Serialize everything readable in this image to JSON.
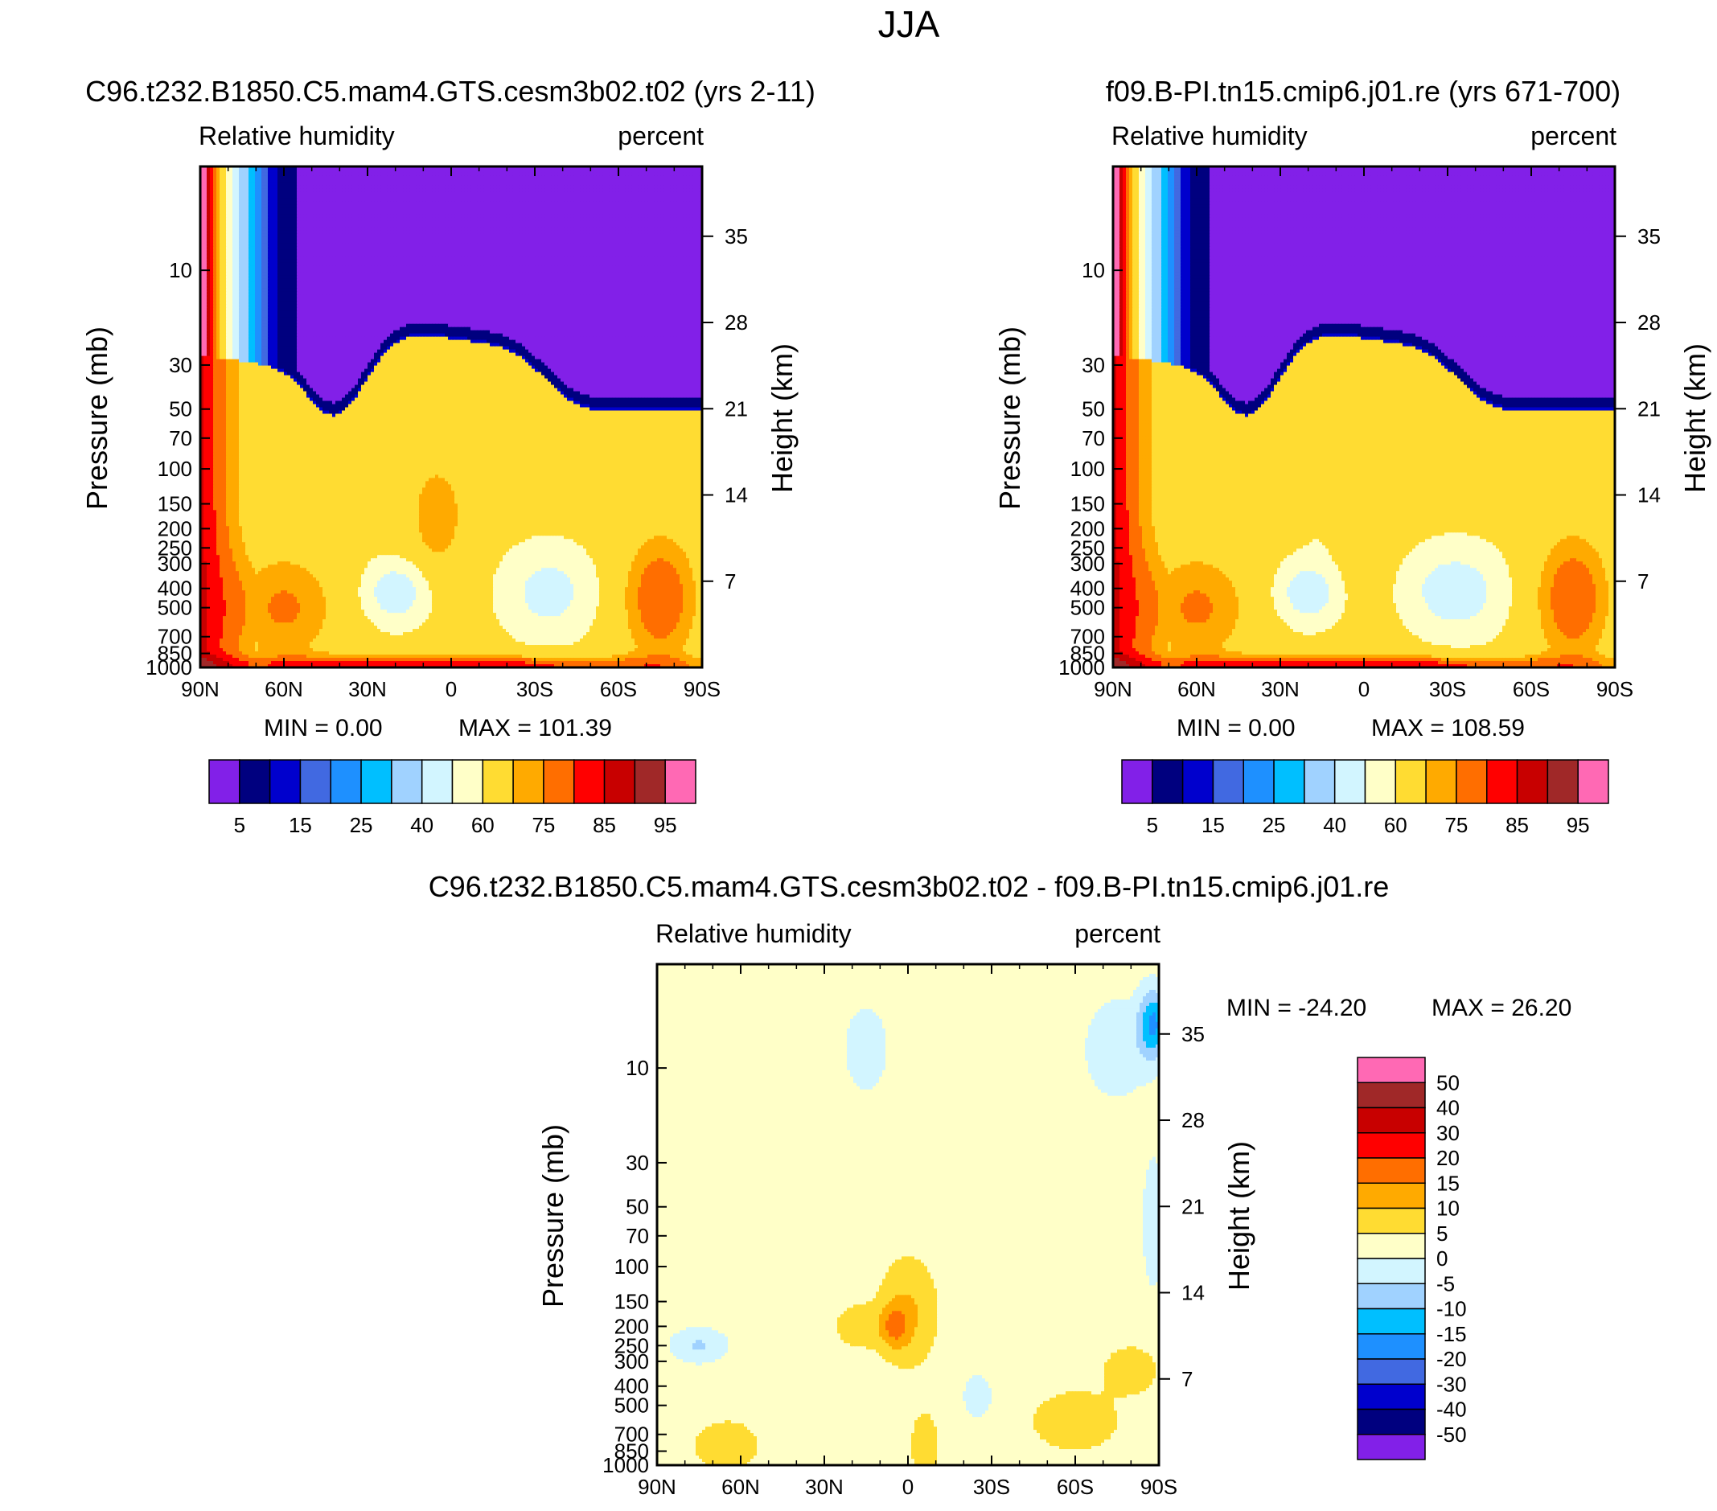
{
  "figure": {
    "title": "JJA"
  },
  "colors": {
    "rh_levels": [
      "#8220e8",
      "#00007f",
      "#0000cd",
      "#4169e1",
      "#1e90ff",
      "#00bfff",
      "#a0d2ff",
      "#d2f5ff",
      "#ffffc8",
      "#ffdc32",
      "#ffaa00",
      "#ff6e00",
      "#ff0000",
      "#c80000",
      "#a02828",
      "#ff69b4"
    ],
    "diff_levels": [
      "#8220e8",
      "#00007f",
      "#0000cd",
      "#4169e1",
      "#1e90ff",
      "#00bfff",
      "#a0d2ff",
      "#d2f5ff",
      "#ffffc8",
      "#ffdc32",
      "#ffaa00",
      "#ff6e00",
      "#ff0000",
      "#c80000",
      "#a02828",
      "#ff69b4"
    ]
  },
  "chart_data": [
    {
      "type": "heatmap",
      "title": "C96.t232.B1850.C5.mam4.GTS.cesm3b02.t02 (yrs 2-11)",
      "variable": "Relative humidity",
      "units": "percent",
      "ylabel": "Pressure (mb)",
      "ylabel_right": "Height (km)",
      "x_ticks": [
        "90N",
        "60N",
        "30N",
        "0",
        "30S",
        "60S",
        "90S"
      ],
      "y_ticks": [
        10,
        30,
        50,
        70,
        100,
        150,
        200,
        250,
        300,
        400,
        500,
        700,
        850,
        1000
      ],
      "y_right_ticks": [
        35,
        28,
        21,
        14,
        7
      ],
      "ylim": [
        1000,
        3
      ],
      "y_scale": "log",
      "min_text": "MIN =     0.00",
      "max_text": "MAX = 101.39",
      "colorbar": {
        "orientation": "horizontal",
        "labels": [
          "5",
          "15",
          "25",
          "40",
          "60",
          "75",
          "85",
          "95"
        ],
        "levels": [
          5,
          10,
          15,
          20,
          25,
          30,
          40,
          50,
          60,
          70,
          75,
          80,
          85,
          90,
          95
        ]
      }
    },
    {
      "type": "heatmap",
      "title": "f09.B-PI.tn15.cmip6.j01.re (yrs 671-700)",
      "variable": "Relative humidity",
      "units": "percent",
      "ylabel": "Pressure (mb)",
      "ylabel_right": "Height (km)",
      "x_ticks": [
        "90N",
        "60N",
        "30N",
        "0",
        "30S",
        "60S",
        "90S"
      ],
      "y_ticks": [
        10,
        30,
        50,
        70,
        100,
        150,
        200,
        250,
        300,
        400,
        500,
        700,
        850,
        1000
      ],
      "y_right_ticks": [
        35,
        28,
        21,
        14,
        7
      ],
      "ylim": [
        1000,
        3
      ],
      "y_scale": "log",
      "min_text": "MIN =     0.00",
      "max_text": "MAX = 108.59",
      "colorbar": {
        "orientation": "horizontal",
        "labels": [
          "5",
          "15",
          "25",
          "40",
          "60",
          "75",
          "85",
          "95"
        ],
        "levels": [
          5,
          10,
          15,
          20,
          25,
          30,
          40,
          50,
          60,
          70,
          75,
          80,
          85,
          90,
          95
        ]
      }
    },
    {
      "type": "heatmap",
      "title": "C96.t232.B1850.C5.mam4.GTS.cesm3b02.t02 - f09.B-PI.tn15.cmip6.j01.re",
      "variable": "Relative humidity",
      "units": "percent",
      "ylabel": "Pressure (mb)",
      "ylabel_right": "Height (km)",
      "x_ticks": [
        "90N",
        "60N",
        "30N",
        "0",
        "30S",
        "60S",
        "90S"
      ],
      "y_ticks": [
        10,
        30,
        50,
        70,
        100,
        150,
        200,
        250,
        300,
        400,
        500,
        700,
        850,
        1000
      ],
      "y_right_ticks": [
        35,
        28,
        21,
        14,
        7
      ],
      "ylim": [
        1000,
        3
      ],
      "y_scale": "log",
      "min_text": "MIN = -24.20",
      "max_text": "MAX =   26.20",
      "colorbar": {
        "orientation": "vertical",
        "labels": [
          "50",
          "40",
          "30",
          "20",
          "15",
          "10",
          "5",
          "0",
          "-5",
          "-10",
          "-15",
          "-20",
          "-30",
          "-40",
          "-50"
        ],
        "levels": [
          -50,
          -40,
          -30,
          -20,
          -15,
          -10,
          -5,
          0,
          5,
          10,
          15,
          20,
          30,
          40,
          50
        ]
      }
    }
  ]
}
